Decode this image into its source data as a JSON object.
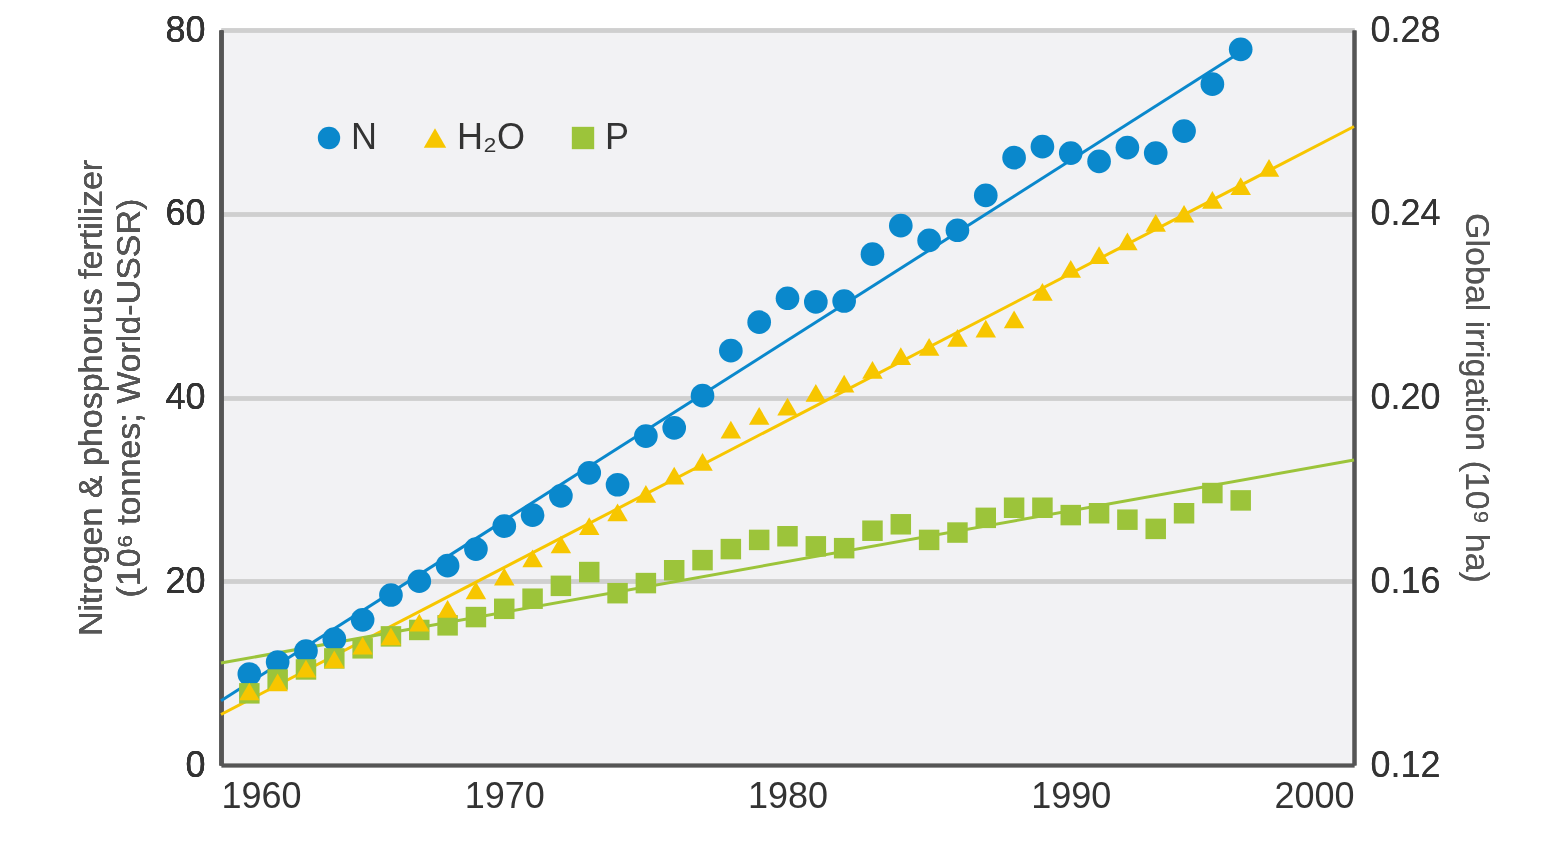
{
  "chart_data": {
    "type": "scatter",
    "ylabel": "Nitrogen & phosphorus fertilizer\n(10⁶ tonnes; World-USSR)",
    "y2label": "Global irrigation (10⁹ ha)",
    "x": [
      1961,
      1962,
      1963,
      1964,
      1965,
      1966,
      1967,
      1968,
      1969,
      1970,
      1971,
      1972,
      1973,
      1974,
      1975,
      1976,
      1977,
      1978,
      1979,
      1980,
      1981,
      1982,
      1983,
      1984,
      1985,
      1986,
      1987,
      1988,
      1989,
      1990,
      1991,
      1992,
      1993,
      1994,
      1995,
      1996
    ],
    "xlim": [
      1960,
      2000
    ],
    "xticks": [
      1960,
      1970,
      1980,
      1990,
      2000
    ],
    "ylim": [
      0,
      80
    ],
    "yticks": [
      0,
      20,
      40,
      60,
      80
    ],
    "y2lim": [
      0.12,
      0.28
    ],
    "y2ticks": [
      0.12,
      0.16,
      {
        "value": 0.2,
        "label": "0.20"
      },
      0.24,
      0.28
    ],
    "grid": "y",
    "legend": "top left",
    "series": [
      {
        "name": "N",
        "marker": "circle",
        "color": "#0a88cc",
        "values": [
          9.9,
          11.2,
          12.4,
          13.7,
          15.8,
          18.5,
          20.0,
          21.7,
          23.5,
          26.0,
          27.2,
          29.3,
          31.8,
          30.5,
          35.8,
          36.7,
          40.2,
          45.1,
          48.2,
          50.8,
          50.4,
          50.5,
          55.6,
          58.7,
          57.1,
          58.2,
          62.0,
          66.1,
          67.3,
          66.6,
          65.7,
          67.2,
          66.6,
          69.0,
          74.1,
          77.9
        ]
      },
      {
        "name": "H₂O",
        "marker": "triangle",
        "axis": "y2",
        "color": "#f7c600",
        "x": [
          1961,
          1962,
          1963,
          1964,
          1965,
          1966,
          1967,
          1968,
          1969,
          1970,
          1971,
          1972,
          1973,
          1974,
          1975,
          1976,
          1977,
          1978,
          1979,
          1980,
          1981,
          1982,
          1983,
          1984,
          1985,
          1986,
          1987,
          1988,
          1989,
          1990,
          1991,
          1992,
          1993,
          1994,
          1995,
          1996,
          1997
        ],
        "values": [
          0.136,
          0.138,
          0.141,
          0.143,
          0.146,
          0.148,
          0.151,
          0.154,
          0.158,
          0.161,
          0.165,
          0.168,
          0.172,
          0.175,
          0.179,
          0.183,
          0.186,
          0.193,
          0.196,
          0.198,
          0.201,
          0.203,
          0.206,
          0.209,
          0.211,
          0.213,
          0.215,
          0.217,
          0.223,
          0.228,
          0.231,
          0.234,
          0.238,
          0.24,
          0.243,
          0.246,
          0.25
        ]
      },
      {
        "name": "P",
        "marker": "square",
        "color": "#9cc43a",
        "values": [
          7.8,
          9.3,
          10.4,
          11.6,
          12.7,
          14.0,
          14.7,
          15.2,
          16.1,
          17.0,
          18.1,
          19.5,
          21.0,
          18.7,
          19.8,
          21.2,
          22.3,
          23.5,
          24.5,
          24.9,
          23.8,
          23.6,
          25.5,
          26.2,
          24.5,
          25.3,
          26.9,
          28.0,
          28.0,
          27.2,
          27.4,
          26.7,
          25.7,
          27.4,
          29.6,
          28.8
        ]
      },
      {
        "type": "line",
        "color": "#0a88cc",
        "x": [
          1960,
          1996
        ],
        "values": [
          7.0,
          77.6
        ]
      },
      {
        "type": "line",
        "axis": "y2",
        "color": "#f7c600",
        "x": [
          1960,
          2000
        ],
        "values": [
          0.131,
          0.259
        ]
      },
      {
        "type": "line",
        "color": "#9cc43a",
        "x": [
          1960,
          2000
        ],
        "values": [
          11.1,
          33.2
        ]
      }
    ]
  }
}
